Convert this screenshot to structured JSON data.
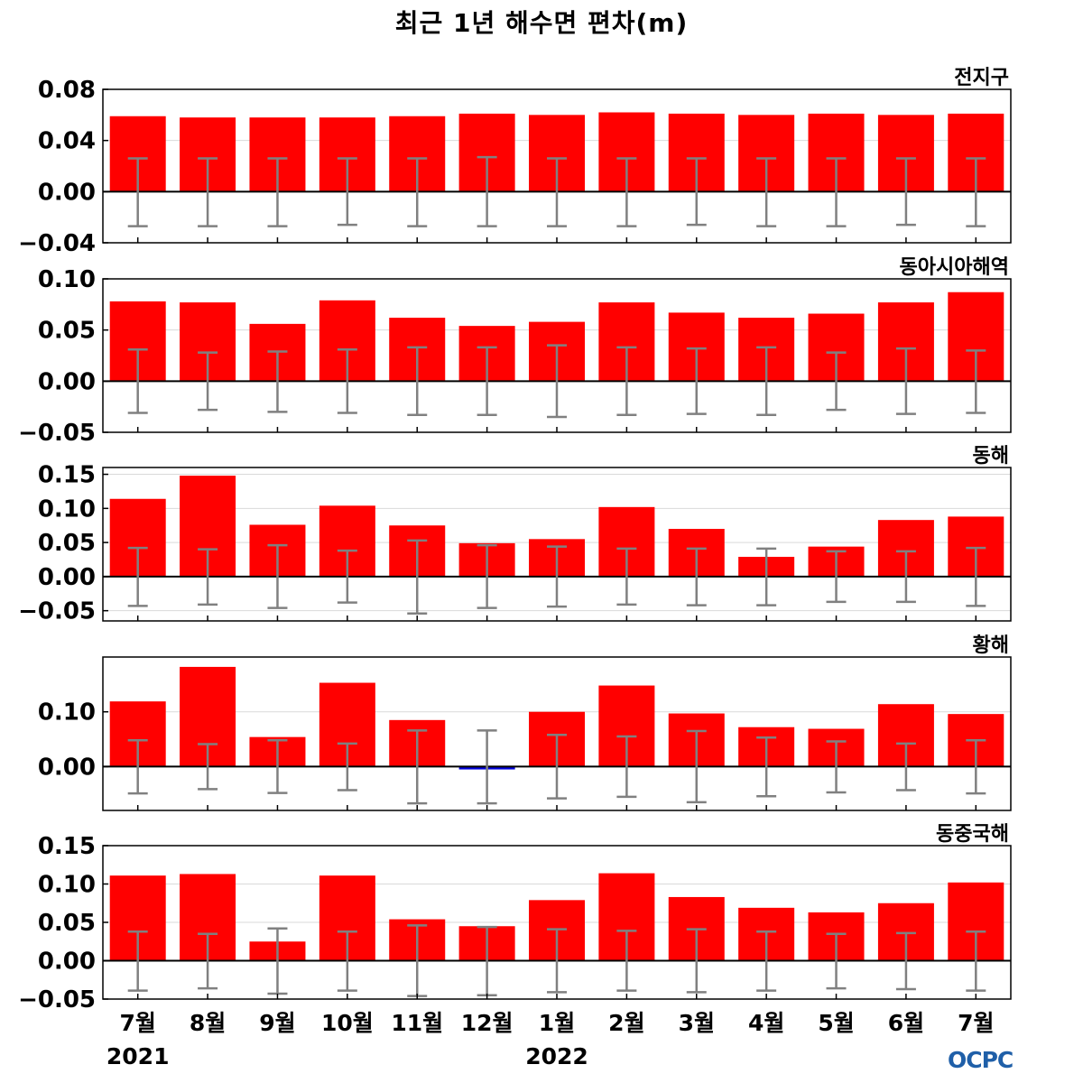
{
  "title": "최근 1년 해수면 편차(m)",
  "logo_text": "OCPC",
  "colors": {
    "positive": "#ff0000",
    "negative": "#0000dd",
    "errorbar": "#808080",
    "grid": "#d9d9d9",
    "zero_line": "#000000"
  },
  "chart_data": {
    "type": "bar",
    "categories": [
      "7월",
      "8월",
      "9월",
      "10월",
      "11월",
      "12월",
      "1월",
      "2월",
      "3월",
      "4월",
      "5월",
      "6월",
      "7월"
    ],
    "year_labels": [
      {
        "label": "2021",
        "category_index": 0
      },
      {
        "label": "2022",
        "category_index": 6
      }
    ],
    "grid": true,
    "panels": [
      {
        "title": "전지구",
        "ylim": [
          -0.04,
          0.08
        ],
        "yticks": [
          -0.04,
          0.0,
          0.04,
          0.08
        ],
        "ytick_labels": [
          "−0.04",
          "0.00",
          "0.04",
          "0.08"
        ],
        "values": [
          0.059,
          0.058,
          0.058,
          0.058,
          0.059,
          0.061,
          0.06,
          0.062,
          0.061,
          0.06,
          0.061,
          0.06,
          0.061
        ],
        "error_upper": [
          0.026,
          0.026,
          0.026,
          0.026,
          0.026,
          0.027,
          0.026,
          0.026,
          0.026,
          0.026,
          0.026,
          0.026,
          0.026
        ],
        "error_lower": [
          -0.027,
          -0.027,
          -0.027,
          -0.026,
          -0.027,
          -0.027,
          -0.027,
          -0.027,
          -0.026,
          -0.027,
          -0.027,
          -0.026,
          -0.027
        ]
      },
      {
        "title": "동아시아해역",
        "ylim": [
          -0.05,
          0.1
        ],
        "yticks": [
          -0.05,
          0.0,
          0.05,
          0.1
        ],
        "ytick_labels": [
          "−0.05",
          "0.00",
          "0.05",
          "0.10"
        ],
        "values": [
          0.078,
          0.077,
          0.056,
          0.079,
          0.062,
          0.054,
          0.058,
          0.077,
          0.067,
          0.062,
          0.066,
          0.077,
          0.087
        ],
        "error_upper": [
          0.031,
          0.028,
          0.029,
          0.031,
          0.033,
          0.033,
          0.035,
          0.033,
          0.032,
          0.033,
          0.028,
          0.032,
          0.03
        ],
        "error_lower": [
          -0.031,
          -0.028,
          -0.03,
          -0.031,
          -0.033,
          -0.033,
          -0.035,
          -0.033,
          -0.032,
          -0.033,
          -0.028,
          -0.032,
          -0.031
        ]
      },
      {
        "title": "동해",
        "ylim": [
          -0.065,
          0.16
        ],
        "yticks": [
          -0.05,
          0.0,
          0.05,
          0.1,
          0.15
        ],
        "ytick_labels": [
          "−0.05",
          "0.00",
          "0.05",
          "0.10",
          "0.15"
        ],
        "values": [
          0.114,
          0.148,
          0.076,
          0.104,
          0.075,
          0.049,
          0.055,
          0.102,
          0.07,
          0.029,
          0.044,
          0.083,
          0.088
        ],
        "error_upper": [
          0.042,
          0.04,
          0.046,
          0.038,
          0.053,
          0.046,
          0.044,
          0.041,
          0.041,
          0.041,
          0.037,
          0.037,
          0.042
        ],
        "error_lower": [
          -0.043,
          -0.041,
          -0.046,
          -0.038,
          -0.054,
          -0.046,
          -0.044,
          -0.041,
          -0.042,
          -0.042,
          -0.037,
          -0.037,
          -0.043
        ]
      },
      {
        "title": "황해",
        "ylim": [
          -0.08,
          0.2
        ],
        "yticks": [
          0.0,
          0.1
        ],
        "ytick_labels": [
          "0.00",
          "0.10"
        ],
        "values": [
          0.119,
          0.182,
          0.054,
          0.153,
          0.085,
          -0.006,
          0.1,
          0.148,
          0.097,
          0.072,
          0.069,
          0.114,
          0.096
        ],
        "error_upper": [
          0.048,
          0.041,
          0.048,
          0.042,
          0.066,
          0.066,
          0.058,
          0.055,
          0.065,
          0.053,
          0.046,
          0.042,
          0.048
        ],
        "error_lower": [
          -0.049,
          -0.041,
          -0.048,
          -0.043,
          -0.067,
          -0.067,
          -0.058,
          -0.055,
          -0.065,
          -0.054,
          -0.047,
          -0.043,
          -0.049
        ]
      },
      {
        "title": "동중국해",
        "ylim": [
          -0.05,
          0.15
        ],
        "yticks": [
          -0.05,
          0.0,
          0.05,
          0.1,
          0.15
        ],
        "ytick_labels": [
          "−0.05",
          "0.00",
          "0.05",
          "0.10",
          "0.15"
        ],
        "values": [
          0.111,
          0.113,
          0.025,
          0.111,
          0.054,
          0.045,
          0.079,
          0.114,
          0.083,
          0.069,
          0.063,
          0.075,
          0.102
        ],
        "error_upper": [
          0.038,
          0.035,
          0.042,
          0.038,
          0.046,
          0.044,
          0.041,
          0.039,
          0.041,
          0.038,
          0.035,
          0.036,
          0.038
        ],
        "error_lower": [
          -0.039,
          -0.036,
          -0.043,
          -0.039,
          -0.046,
          -0.045,
          -0.041,
          -0.039,
          -0.041,
          -0.039,
          -0.036,
          -0.037,
          -0.039
        ]
      }
    ]
  }
}
